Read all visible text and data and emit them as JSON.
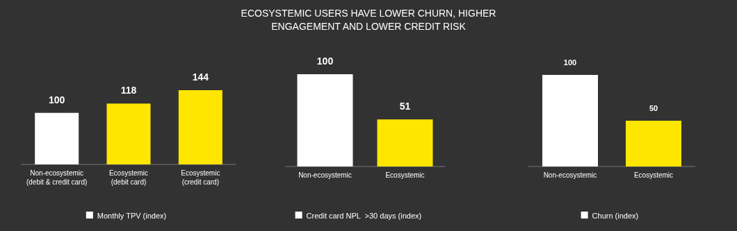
{
  "chart_data": [
    {
      "type": "other",
      "title": "ECOSYSTEMIC USERS HAVE LOWER CHURN, HIGHER ENGAGEMENT AND LOWER CREDIT RISK"
    },
    {
      "type": "bar",
      "categories": [
        "Non-ecosystemic (debit & credit card)",
        "Ecosystemic (debit card)",
        "Ecosystemic (credit card)"
      ],
      "series": [
        {
          "name": "Monthly TPV (index)",
          "color": "#ffffff",
          "colors": [
            "#ffffff",
            "#ffe600",
            "#ffe600"
          ],
          "values": [
            100,
            118,
            144
          ]
        }
      ],
      "data_labels": true,
      "legend": "bottom"
    },
    {
      "type": "bar",
      "categories": [
        "Non-ecosystemic",
        "Ecosystemic"
      ],
      "series": [
        {
          "name": "Credit card NPL  >30 days (index)",
          "color": "#ffffff",
          "colors": [
            "#ffffff",
            "#ffe600"
          ],
          "values": [
            100,
            51
          ]
        }
      ],
      "data_labels": true,
      "legend": "bottom"
    },
    {
      "type": "bar",
      "categories": [
        "Non-ecosystemic",
        "Ecosystemic"
      ],
      "series": [
        {
          "name": "Churn (index)",
          "color": "#ffffff",
          "colors": [
            "#ffffff",
            "#ffe600"
          ],
          "values": [
            100,
            50
          ]
        }
      ],
      "data_labels": true,
      "legend": "bottom"
    }
  ]
}
